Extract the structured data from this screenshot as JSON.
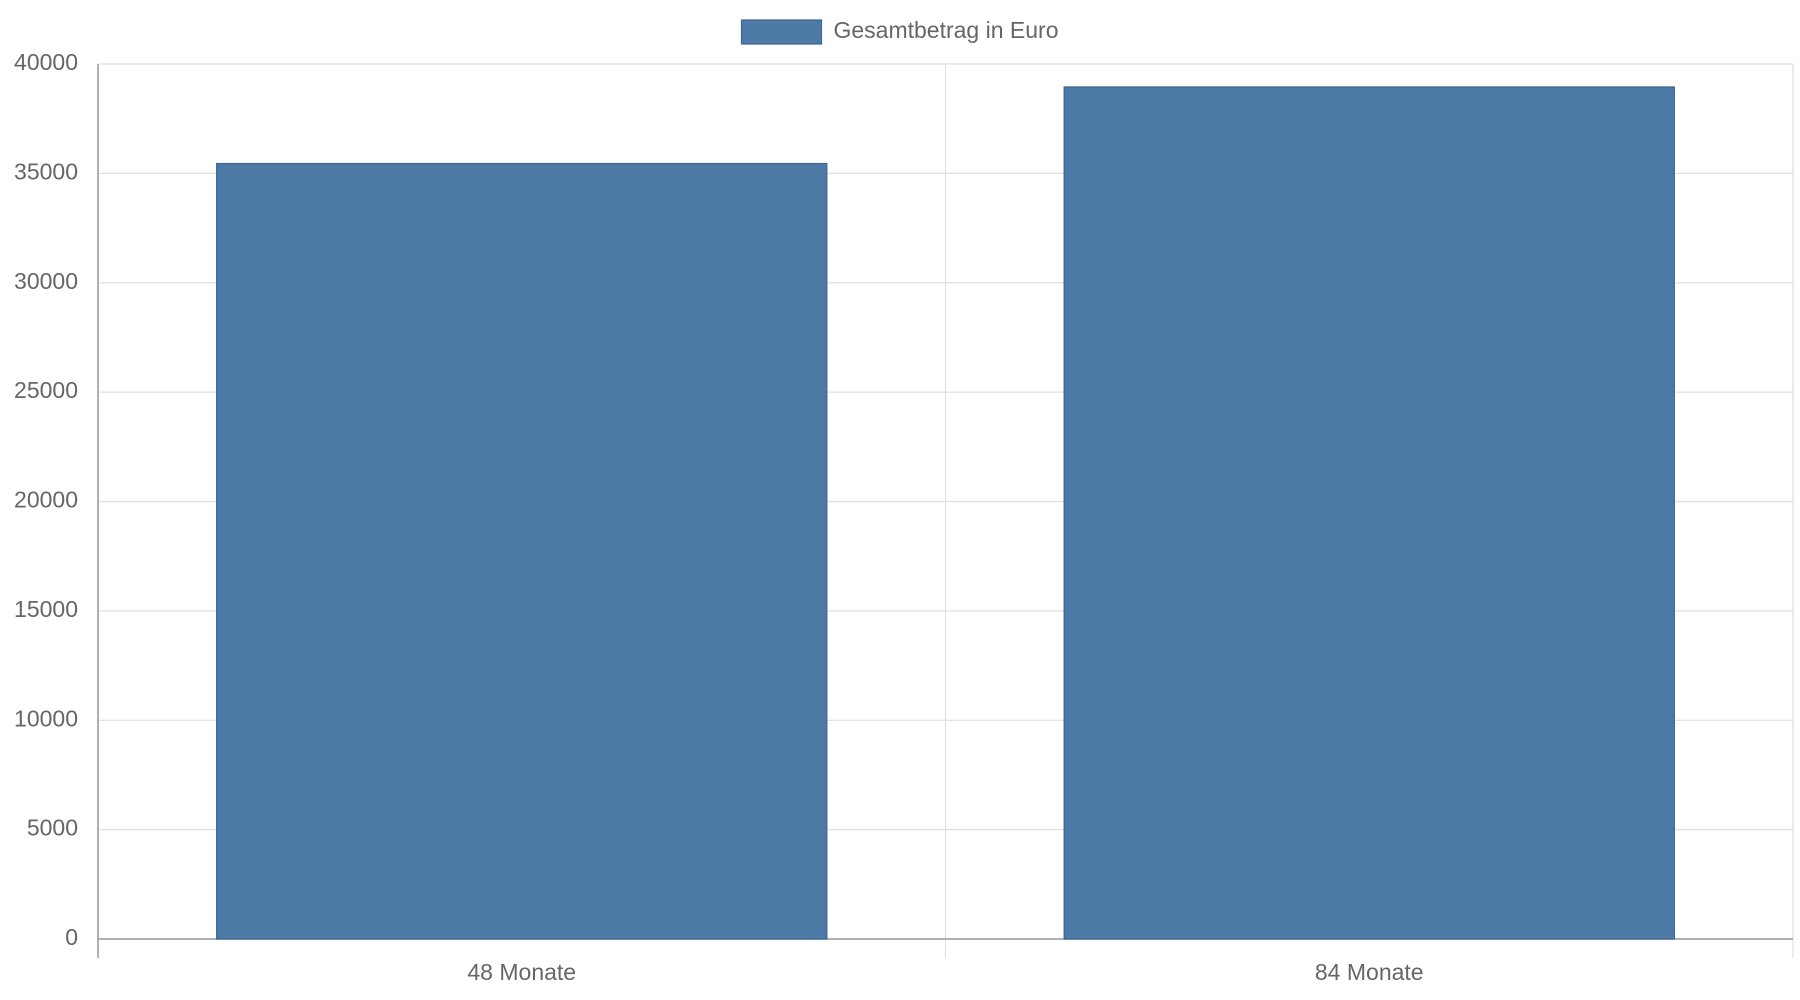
{
  "chart_data": {
    "type": "bar",
    "legend": "Gesamtbetrag in Euro",
    "categories": [
      "48 Monate",
      "84 Monate"
    ],
    "series": [
      {
        "name": "Gesamtbetrag in Euro",
        "color": "#4d79a7",
        "values": [
          35450,
          38950
        ]
      }
    ],
    "ylim": [
      0,
      40000
    ],
    "yticks": [
      0,
      5000,
      10000,
      15000,
      20000,
      25000,
      30000,
      35000,
      40000
    ],
    "grid": true,
    "legend_position": "top"
  }
}
